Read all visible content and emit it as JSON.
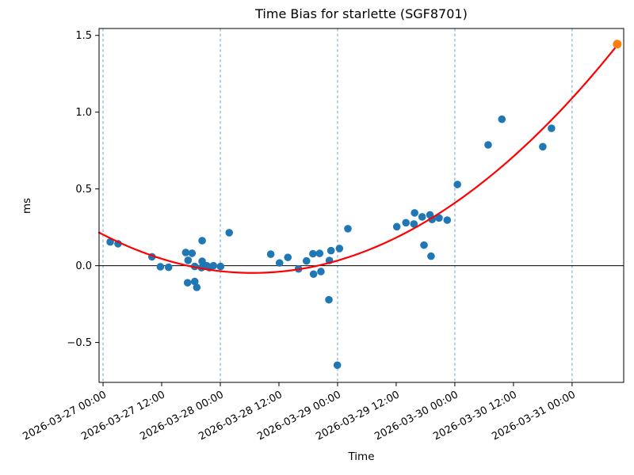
{
  "figure": {
    "title": "Time Bias for starlette (SGF8701)",
    "xlabel": "Time",
    "ylabel": "ms"
  },
  "chart_data": {
    "type": "scatter",
    "title": "Time Bias for starlette (SGF8701)",
    "xlabel": "Time",
    "ylabel": "ms",
    "x_unit": "fractional days since 2026-03-27 00:00",
    "xlim_days": [
      -0.034,
      4.44
    ],
    "ylim": [
      -0.76,
      1.545
    ],
    "grid": "vertical dashed lines at each 00:00 day boundary",
    "legend": "none",
    "x_ticks": [
      {
        "t": 0.0,
        "label": "2026-03-27 00:00"
      },
      {
        "t": 0.5,
        "label": "2026-03-27 12:00"
      },
      {
        "t": 1.0,
        "label": "2026-03-28 00:00"
      },
      {
        "t": 1.5,
        "label": "2026-03-28 12:00"
      },
      {
        "t": 2.0,
        "label": "2026-03-29 00:00"
      },
      {
        "t": 2.5,
        "label": "2026-03-29 12:00"
      },
      {
        "t": 3.0,
        "label": "2026-03-30 00:00"
      },
      {
        "t": 3.5,
        "label": "2026-03-30 12:00"
      },
      {
        "t": 4.0,
        "label": "2026-03-31 00:00"
      }
    ],
    "y_ticks": [
      {
        "v": -0.5,
        "label": "−0.5"
      },
      {
        "v": 0.0,
        "label": "0.0"
      },
      {
        "v": 0.5,
        "label": "0.5"
      },
      {
        "v": 1.0,
        "label": "1.0"
      },
      {
        "v": 1.5,
        "label": "1.5"
      }
    ],
    "day_gridlines_t": [
      0,
      1,
      2,
      3,
      4
    ],
    "zero_line_v": 0.0,
    "series": [
      {
        "name": "time-bias-observations",
        "color": "#1f77b4",
        "marker_radius": 4.8,
        "points": [
          [
            0.061,
            0.155
          ],
          [
            0.128,
            0.143
          ],
          [
            0.417,
            0.058
          ],
          [
            0.489,
            -0.007
          ],
          [
            0.559,
            -0.01
          ],
          [
            0.705,
            0.086
          ],
          [
            0.721,
            -0.111
          ],
          [
            0.725,
            0.035
          ],
          [
            0.759,
            0.081
          ],
          [
            0.782,
            -0.005
          ],
          [
            0.782,
            -0.103
          ],
          [
            0.799,
            -0.141
          ],
          [
            0.84,
            -0.013
          ],
          [
            0.845,
            0.163
          ],
          [
            0.845,
            0.029
          ],
          [
            0.885,
            0.0
          ],
          [
            0.907,
            -0.013
          ],
          [
            0.941,
            0.0
          ],
          [
            1.002,
            -0.005
          ],
          [
            1.076,
            0.215
          ],
          [
            1.43,
            0.075
          ],
          [
            1.505,
            0.018
          ],
          [
            1.576,
            0.054
          ],
          [
            1.667,
            -0.021
          ],
          [
            1.735,
            0.031
          ],
          [
            1.79,
            0.078
          ],
          [
            1.795,
            -0.055
          ],
          [
            1.847,
            0.08
          ],
          [
            1.858,
            -0.038
          ],
          [
            1.926,
            -0.222
          ],
          [
            1.93,
            0.034
          ],
          [
            1.944,
            0.098
          ],
          [
            1.998,
            -0.648
          ],
          [
            2.016,
            0.112
          ],
          [
            2.088,
            0.241
          ],
          [
            2.505,
            0.254
          ],
          [
            2.583,
            0.28
          ],
          [
            2.651,
            0.272
          ],
          [
            2.657,
            0.344
          ],
          [
            2.721,
            0.318
          ],
          [
            2.737,
            0.134
          ],
          [
            2.788,
            0.331
          ],
          [
            2.797,
            0.062
          ],
          [
            2.806,
            0.301
          ],
          [
            2.865,
            0.311
          ],
          [
            2.935,
            0.297
          ],
          [
            3.022,
            0.529
          ],
          [
            3.284,
            0.787
          ],
          [
            3.401,
            0.954
          ],
          [
            3.75,
            0.775
          ],
          [
            3.824,
            0.895
          ]
        ]
      },
      {
        "name": "extrapolated-bias-point",
        "color": "#ff7f0e",
        "marker_radius": 5.5,
        "points": [
          [
            4.385,
            1.443
          ]
        ]
      }
    ],
    "fit_curve": {
      "name": "quadratic-fit",
      "color": "#ff0000",
      "width": 2.2,
      "coeffs_ms_vs_days": {
        "a": 0.1534,
        "b": -0.3914,
        "c": 0.2025
      },
      "t_range": [
        -0.034,
        4.44
      ]
    },
    "styles": {
      "day_gridline_color": "#6fa3cc",
      "zero_line_color": "#000000",
      "axis_color": "#000000",
      "background": "#ffffff"
    }
  }
}
